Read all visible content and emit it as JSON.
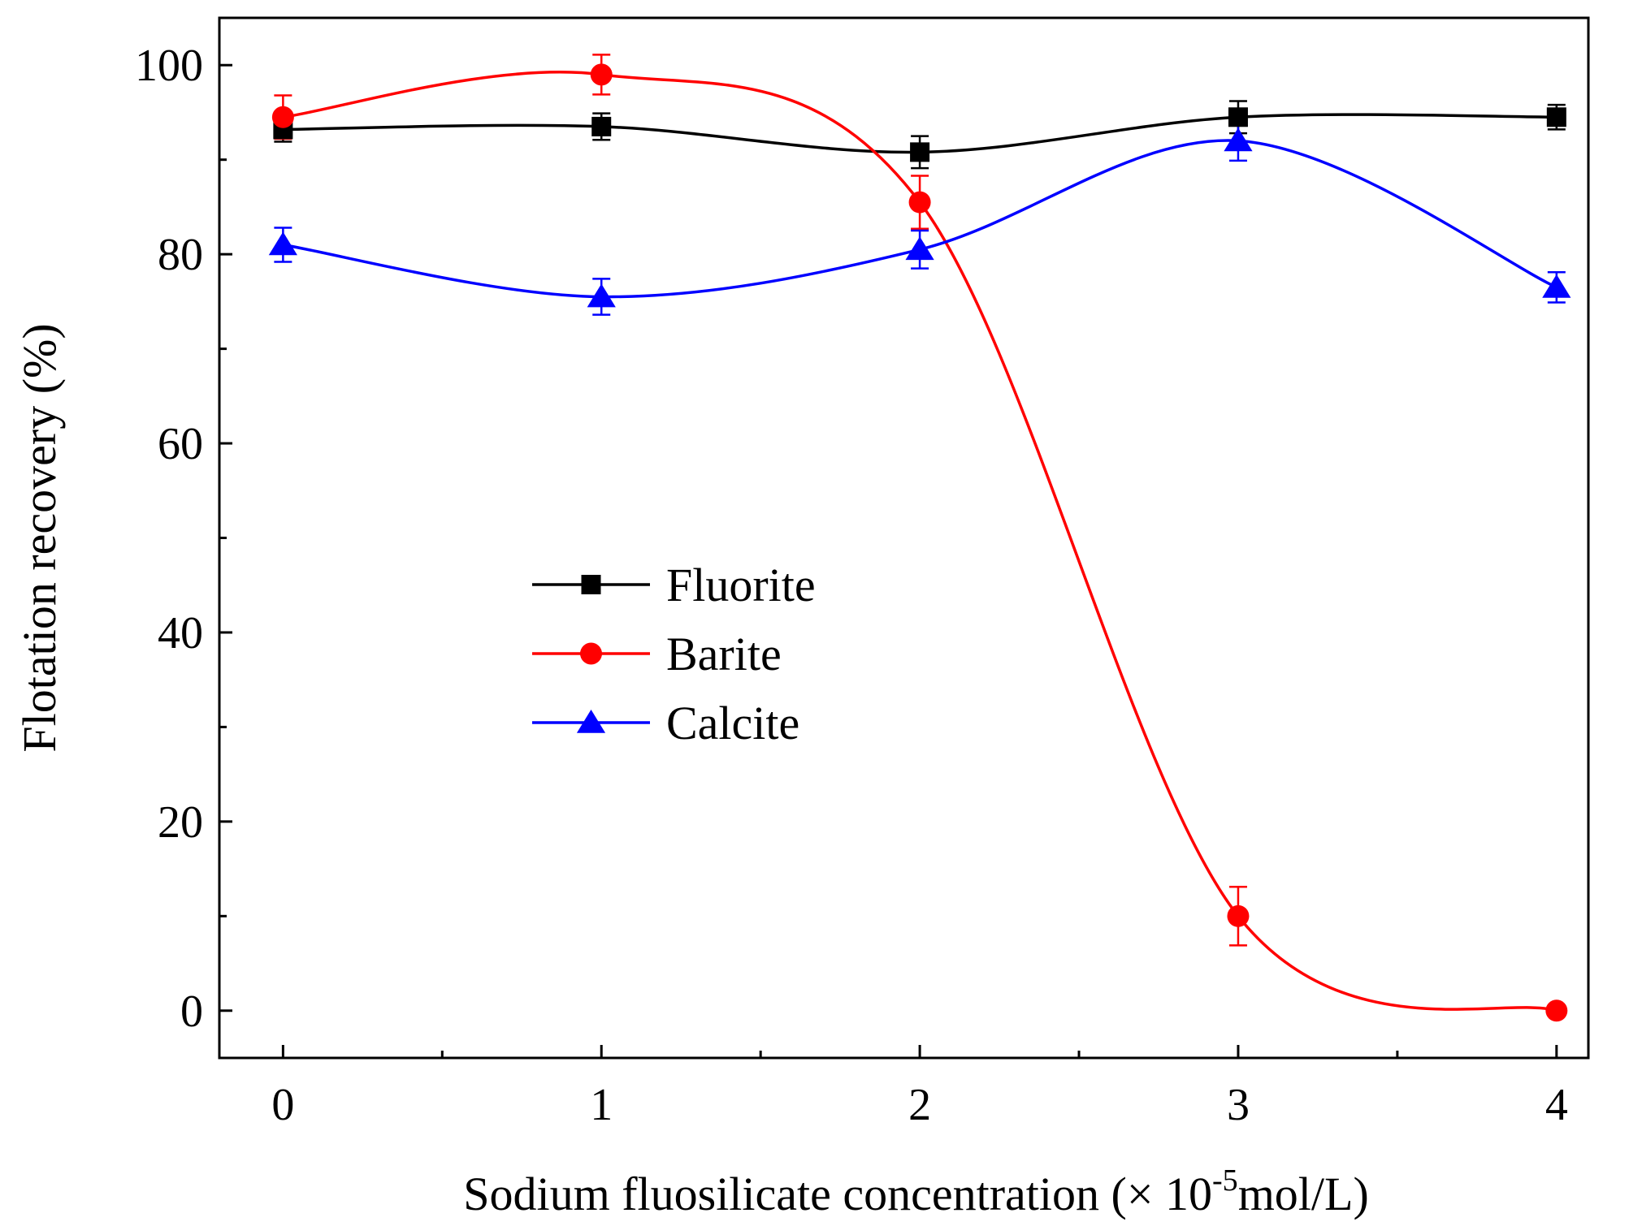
{
  "chart_data": {
    "type": "line",
    "title": "",
    "xlabel_main": "Sodium fluosilicate concentration (×  10",
    "xlabel_sup": "-5",
    "xlabel_unit": "mol/L)",
    "ylabel": "Flotation recovery (%)",
    "xlim": [
      -0.2,
      4.1
    ],
    "ylim": [
      -5,
      105
    ],
    "xticks": [
      0,
      1,
      2,
      3,
      4
    ],
    "xtick_labels": [
      "0",
      "1",
      "2",
      "3",
      "4"
    ],
    "xminor": [
      0.5,
      1.5,
      2.5,
      3.5
    ],
    "yticks": [
      0,
      20,
      40,
      60,
      80,
      100
    ],
    "ytick_labels": [
      "0",
      "20",
      "40",
      "60",
      "80",
      "100"
    ],
    "yminor": [
      10,
      30,
      50,
      70,
      90
    ],
    "grid": false,
    "legend_position": "center-left",
    "series": [
      {
        "name": "Fluorite",
        "color": "#000000",
        "marker": "square",
        "x": [
          0,
          1,
          2,
          3,
          4
        ],
        "values": [
          93.2,
          93.5,
          90.8,
          94.5,
          94.5
        ],
        "errors": [
          1.3,
          1.4,
          1.7,
          1.7,
          1.3
        ]
      },
      {
        "name": "Barite",
        "color": "#ff0000",
        "marker": "circle",
        "x": [
          0,
          1,
          2,
          3,
          4
        ],
        "values": [
          94.5,
          99.0,
          85.5,
          10.0,
          0.0
        ],
        "errors": [
          2.3,
          2.1,
          2.8,
          3.1,
          0.3
        ]
      },
      {
        "name": "Calcite",
        "color": "#0000ff",
        "marker": "triangle",
        "x": [
          0,
          1,
          2,
          3,
          4
        ],
        "values": [
          81.0,
          75.5,
          80.5,
          92.0,
          76.5
        ],
        "errors": [
          1.8,
          1.9,
          2.0,
          2.1,
          1.6
        ]
      }
    ]
  }
}
